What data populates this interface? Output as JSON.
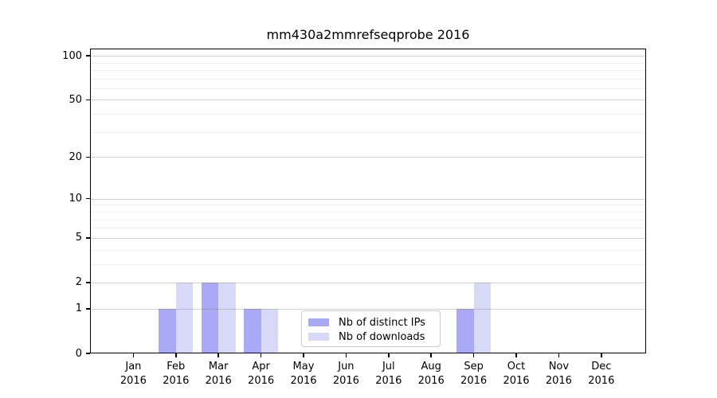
{
  "chart_data": {
    "type": "bar",
    "title": "mm430a2mmrefseqprobe 2016",
    "categories": [
      {
        "month": "Jan",
        "year": "2016"
      },
      {
        "month": "Feb",
        "year": "2016"
      },
      {
        "month": "Mar",
        "year": "2016"
      },
      {
        "month": "Apr",
        "year": "2016"
      },
      {
        "month": "May",
        "year": "2016"
      },
      {
        "month": "Jun",
        "year": "2016"
      },
      {
        "month": "Jul",
        "year": "2016"
      },
      {
        "month": "Aug",
        "year": "2016"
      },
      {
        "month": "Sep",
        "year": "2016"
      },
      {
        "month": "Oct",
        "year": "2016"
      },
      {
        "month": "Nov",
        "year": "2016"
      },
      {
        "month": "Dec",
        "year": "2016"
      }
    ],
    "series": [
      {
        "name": "Nb of distinct IPs",
        "color": "#a9a9f6",
        "values": [
          0,
          1,
          2,
          1,
          0,
          0,
          0,
          0,
          1,
          0,
          0,
          0
        ]
      },
      {
        "name": "Nb of downloads",
        "color": "#d8d8f8",
        "values": [
          0,
          2,
          2,
          1,
          0,
          0,
          0,
          0,
          2,
          0,
          0,
          0
        ]
      }
    ],
    "yscale": "log1p",
    "ylim": [
      0,
      112
    ],
    "yticks": [
      0,
      1,
      2,
      5,
      10,
      20,
      50,
      100
    ],
    "yticks_minor": [
      3,
      4,
      6,
      7,
      8,
      9,
      30,
      40,
      60,
      70,
      80,
      90
    ],
    "grid": "horizontal, majors and log minors, drawn above bars",
    "legend_position": "lower center inside plot"
  }
}
